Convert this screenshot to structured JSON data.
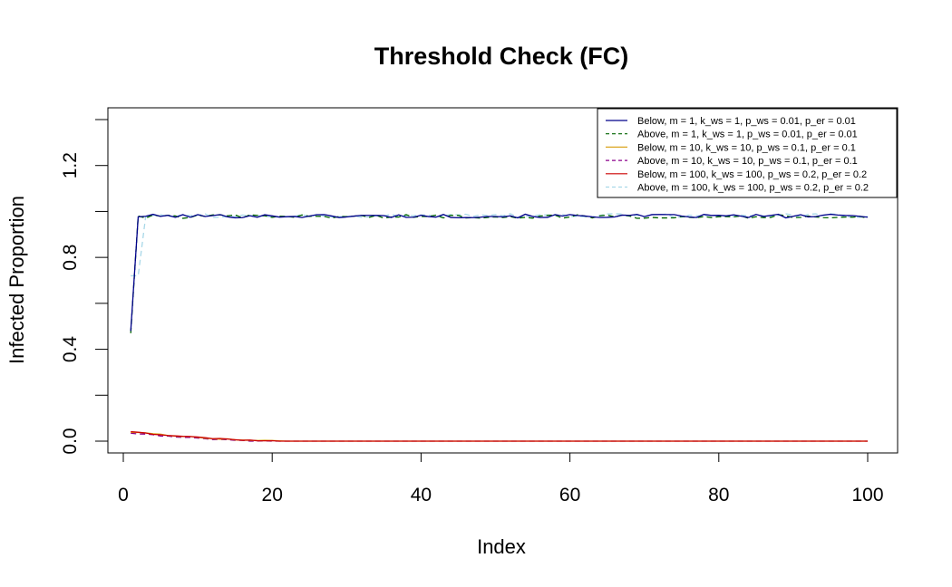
{
  "chart_data": {
    "type": "line",
    "title": "Threshold Check (FC)",
    "xlabel": "Index",
    "ylabel": "Infected Proportion",
    "xlim": [
      0,
      100
    ],
    "ylim": [
      0,
      1.4
    ],
    "x_ticks": [
      0,
      20,
      40,
      60,
      80,
      100
    ],
    "y_ticks_labeled": [
      0.0,
      0.4,
      0.8,
      1.2
    ],
    "y_ticks_minor": [
      0.2,
      0.6,
      1.0,
      1.4
    ],
    "grid": false,
    "legend_position": "top-right",
    "colors": {
      "navy": "#00008b",
      "darkgreen": "#006400",
      "gold": "#daa520",
      "purple": "#8b008b",
      "red": "#cc0000",
      "lightblue": "#a8d8e8"
    },
    "series": [
      {
        "name": "Below, m = 1, k_ws = 1, p_ws = 0.01, p_er = 0.01",
        "color": "#00008b",
        "dash": "solid",
        "start_value": 0.48,
        "plateau_value": 0.98,
        "plateau_from_index": 2,
        "final_value": 0.975
      },
      {
        "name": "Above, m = 1, k_ws = 1, p_ws = 0.01, p_er = 0.01",
        "color": "#006400",
        "dash": "dashed",
        "start_value": 0.47,
        "plateau_value": 0.978,
        "plateau_from_index": 2,
        "final_value": 0.97
      },
      {
        "name": "Below, m = 10, k_ws = 10, p_ws = 0.1, p_er = 0.1",
        "color": "#daa520",
        "dash": "solid",
        "start_value": 0.04,
        "decays_to": 0.0,
        "zero_from_index": 22,
        "final_value": 0.0
      },
      {
        "name": "Above, m = 10, k_ws = 10, p_ws = 0.1, p_er = 0.1",
        "color": "#8b008b",
        "dash": "dashed",
        "start_value": 0.035,
        "decays_to": 0.0,
        "zero_from_index": 20,
        "final_value": 0.0
      },
      {
        "name": "Below, m = 100, k_ws = 100, p_ws = 0.2, p_er = 0.2",
        "color": "#cc0000",
        "dash": "solid",
        "start_value": 0.04,
        "decays_to": 0.0,
        "zero_from_index": 22,
        "final_value": 0.0
      },
      {
        "name": "Above, m = 100, k_ws = 100, p_ws = 0.2, p_er = 0.2",
        "color": "#a8d8e8",
        "dash": "dashed",
        "start_value": 0.72,
        "plateau_value": 0.982,
        "plateau_from_index": 3,
        "final_value": 0.978
      }
    ]
  }
}
